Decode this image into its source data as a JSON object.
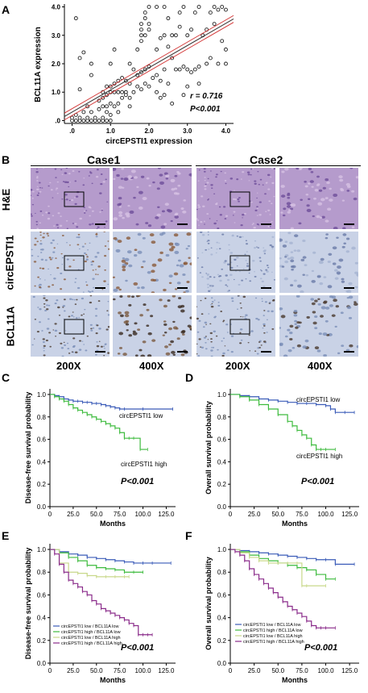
{
  "panel_letters": [
    "A",
    "B",
    "C",
    "D",
    "E",
    "F"
  ],
  "panelA": {
    "xlabel": "circEPSTI1 expression",
    "ylabel": "BCL11A expression",
    "xticks": [
      ".0",
      "1.0",
      "2.0",
      "3.0",
      "4.0"
    ],
    "yticks": [
      ".0",
      "1.0",
      "2.0",
      "3.0",
      "4.0"
    ],
    "stat_r": "r = 0.716",
    "stat_p": "P<0.001"
  },
  "panelB": {
    "cases": [
      "Case1",
      "Case2"
    ],
    "rows": [
      "H&E",
      "circEPSTI1",
      "BCL11A"
    ],
    "mags": [
      "200X",
      "400X",
      "200X",
      "400X"
    ]
  },
  "survival": {
    "xticks": [
      "0",
      "25.0",
      "50.0",
      "75.0",
      "100.0",
      "125.0"
    ],
    "yticks": [
      "0.0",
      "0.2",
      "0.4",
      "0.6",
      "0.8",
      "1.0"
    ],
    "xlabel": "Months",
    "pvalue": "P<0.001",
    "C": {
      "ylabel": "Disease-free survival probability",
      "low": "circEPSTI1 low",
      "high": "circEPSTI1 high"
    },
    "D": {
      "ylabel": "Overall survival probability",
      "low": "circEPSTI1 low",
      "high": "circEPSTI1 high"
    },
    "E": {
      "ylabel": "Disease-free survival probability",
      "legend": [
        "circEPSTI1 low / BCL11A low",
        "circEPSTI1 high / BCL11A low",
        "circEPSTI1 low / BCL11A high",
        "circEPSTI1 high / BCL11A high"
      ]
    },
    "F": {
      "ylabel": "Overall survival probability",
      "legend": [
        "circEPSTI1 low / BCL11A low",
        "circEPSTI1 high / BCL11A low",
        "circEPSTI1 low / BCL11A high",
        "circEPSTI1 high / BCL11A high"
      ]
    }
  },
  "colors": {
    "blue": "#3a5bb8",
    "green": "#3dbb3d",
    "yellowgreen": "#c8d88a",
    "purple": "#8a2b8a",
    "fit": "#d23030",
    "he": "#b59bcc",
    "ihc": "#c9d2e6"
  },
  "chart_data": [
    {
      "type": "scatter",
      "title": "",
      "xlabel": "circEPSTI1 expression",
      "ylabel": "BCL11A expression",
      "xlim": [
        -0.2,
        4.2
      ],
      "ylim": [
        -0.1,
        4.1
      ],
      "annotations": [
        "r = 0.716",
        "P<0.001"
      ],
      "fit_line": {
        "intercept": 0.3,
        "slope": 0.78
      },
      "points": [
        [
          0,
          0
        ],
        [
          0.1,
          0
        ],
        [
          0.2,
          0
        ],
        [
          0.3,
          0
        ],
        [
          0.4,
          0
        ],
        [
          0.5,
          0
        ],
        [
          0.6,
          0
        ],
        [
          0.7,
          0
        ],
        [
          0.8,
          0
        ],
        [
          0.9,
          0
        ],
        [
          1.0,
          0
        ],
        [
          0,
          0.1
        ],
        [
          0.2,
          0.1
        ],
        [
          0.4,
          0.1
        ],
        [
          0.6,
          0.1
        ],
        [
          0.8,
          0.1
        ],
        [
          0.1,
          0.2
        ],
        [
          0.3,
          0.3
        ],
        [
          0.5,
          0.3
        ],
        [
          0.7,
          0.4
        ],
        [
          0.8,
          0.5
        ],
        [
          0.9,
          0.5
        ],
        [
          1.0,
          0.6
        ],
        [
          0.1,
          3.6
        ],
        [
          0.2,
          2.2
        ],
        [
          0.3,
          2.4
        ],
        [
          0.2,
          1.1
        ],
        [
          0.4,
          0.5
        ],
        [
          0.8,
          0.8
        ],
        [
          0.9,
          0.9
        ],
        [
          1.0,
          1.0
        ],
        [
          1.1,
          1.0
        ],
        [
          1.2,
          1.0
        ],
        [
          1.3,
          1.0
        ],
        [
          1.4,
          1.0
        ],
        [
          0.9,
          1.2
        ],
        [
          1.0,
          1.2
        ],
        [
          1.1,
          1.3
        ],
        [
          1.2,
          1.4
        ],
        [
          1.3,
          1.5
        ],
        [
          1.4,
          1.4
        ],
        [
          1.5,
          1.3
        ],
        [
          0.7,
          0.7
        ],
        [
          0.8,
          1.0
        ],
        [
          0.9,
          0.3
        ],
        [
          1.0,
          0.2
        ],
        [
          1.1,
          0.5
        ],
        [
          1.2,
          0.6
        ],
        [
          1.3,
          0.8
        ],
        [
          1.4,
          0.9
        ],
        [
          1.5,
          0.8
        ],
        [
          1.6,
          1.0
        ],
        [
          1.7,
          1.2
        ],
        [
          1.8,
          1.1
        ],
        [
          1.9,
          1.3
        ],
        [
          2.0,
          1.2
        ],
        [
          1.0,
          2.0
        ],
        [
          1.1,
          2.5
        ],
        [
          1.5,
          2.0
        ],
        [
          1.6,
          1.8
        ],
        [
          1.7,
          1.6
        ],
        [
          1.8,
          1.7
        ],
        [
          1.9,
          1.8
        ],
        [
          2.0,
          1.9
        ],
        [
          1.7,
          2.5
        ],
        [
          1.8,
          3.0
        ],
        [
          1.8,
          3.2
        ],
        [
          1.8,
          3.4
        ],
        [
          1.9,
          3.6
        ],
        [
          1.9,
          3.8
        ],
        [
          2.0,
          4.0
        ],
        [
          1.9,
          3.0
        ],
        [
          2.0,
          3.2
        ],
        [
          2.0,
          3.4
        ],
        [
          1.8,
          2.8
        ],
        [
          2.1,
          1.5
        ],
        [
          2.2,
          1.6
        ],
        [
          2.3,
          1.4
        ],
        [
          2.4,
          1.8
        ],
        [
          2.5,
          1.3
        ],
        [
          2.2,
          1.0
        ],
        [
          2.3,
          0.8
        ],
        [
          2.4,
          0.9
        ],
        [
          2.2,
          2.5
        ],
        [
          2.3,
          2.9
        ],
        [
          2.4,
          3.0
        ],
        [
          2.2,
          4.0
        ],
        [
          2.4,
          4.0
        ],
        [
          2.5,
          3.6
        ],
        [
          2.6,
          2.2
        ],
        [
          2.7,
          1.8
        ],
        [
          2.8,
          1.8
        ],
        [
          2.9,
          1.9
        ],
        [
          3.0,
          1.8
        ],
        [
          3.1,
          1.7
        ],
        [
          3.2,
          1.8
        ],
        [
          3.3,
          1.9
        ],
        [
          2.6,
          3.0
        ],
        [
          2.7,
          3.0
        ],
        [
          2.8,
          3.8
        ],
        [
          2.9,
          4.0
        ],
        [
          3.0,
          3.0
        ],
        [
          3.1,
          3.2
        ],
        [
          3.2,
          3.8
        ],
        [
          3.3,
          4.0
        ],
        [
          3.4,
          3.0
        ],
        [
          3.5,
          3.2
        ],
        [
          3.6,
          3.8
        ],
        [
          3.7,
          4.0
        ],
        [
          3.8,
          3.9
        ],
        [
          3.9,
          2.8
        ],
        [
          4.0,
          2.5
        ],
        [
          3.5,
          2.0
        ],
        [
          3.6,
          2.2
        ],
        [
          3.8,
          2.0
        ],
        [
          4.0,
          2.0
        ],
        [
          3.0,
          1.2
        ],
        [
          3.3,
          1.3
        ],
        [
          2.6,
          0.6
        ],
        [
          2.9,
          0.9
        ],
        [
          3.9,
          4.0
        ],
        [
          4.0,
          3.9
        ],
        [
          3.7,
          3.4
        ],
        [
          2.5,
          2.6
        ],
        [
          2.8,
          3.3
        ],
        [
          1.5,
          0.5
        ],
        [
          1.2,
          0.3
        ],
        [
          0.5,
          1.6
        ],
        [
          0.5,
          2.0
        ]
      ]
    },
    {
      "type": "line",
      "title": "",
      "xlabel": "Months",
      "ylabel": "Disease-free survival probability",
      "xlim": [
        0,
        135
      ],
      "ylim": [
        0,
        1.05
      ],
      "series": [
        {
          "name": "circEPSTI1 low",
          "x": [
            0,
            5,
            10,
            15,
            20,
            25,
            30,
            35,
            40,
            45,
            50,
            55,
            60,
            65,
            70,
            75,
            80,
            100,
            132
          ],
          "y": [
            1.0,
            0.99,
            0.98,
            0.96,
            0.95,
            0.94,
            0.94,
            0.93,
            0.93,
            0.92,
            0.92,
            0.91,
            0.9,
            0.89,
            0.88,
            0.87,
            0.87,
            0.87,
            0.87
          ]
        },
        {
          "name": "circEPSTI1 high",
          "x": [
            0,
            5,
            10,
            15,
            20,
            25,
            30,
            35,
            40,
            45,
            50,
            55,
            60,
            65,
            70,
            75,
            80,
            85,
            90,
            97,
            105
          ],
          "y": [
            1.0,
            0.98,
            0.96,
            0.94,
            0.91,
            0.88,
            0.86,
            0.84,
            0.82,
            0.8,
            0.78,
            0.76,
            0.74,
            0.72,
            0.7,
            0.66,
            0.61,
            0.61,
            0.61,
            0.51,
            0.51
          ]
        }
      ]
    },
    {
      "type": "line",
      "title": "",
      "xlabel": "Months",
      "ylabel": "Overall survival probability",
      "xlim": [
        0,
        135
      ],
      "ylim": [
        0,
        1.05
      ],
      "series": [
        {
          "name": "circEPSTI1 low",
          "x": [
            0,
            10,
            20,
            30,
            40,
            50,
            60,
            70,
            80,
            90,
            100,
            105,
            110,
            120,
            130
          ],
          "y": [
            1.0,
            0.99,
            0.98,
            0.96,
            0.95,
            0.94,
            0.93,
            0.92,
            0.92,
            0.91,
            0.9,
            0.87,
            0.84,
            0.84,
            0.84
          ]
        },
        {
          "name": "circEPSTI1 high",
          "x": [
            0,
            10,
            20,
            30,
            40,
            50,
            60,
            65,
            70,
            75,
            80,
            85,
            90,
            95,
            100,
            110
          ],
          "y": [
            1.0,
            0.98,
            0.95,
            0.91,
            0.87,
            0.82,
            0.76,
            0.72,
            0.68,
            0.64,
            0.61,
            0.55,
            0.51,
            0.51,
            0.51,
            0.51
          ]
        }
      ]
    },
    {
      "type": "line",
      "title": "",
      "xlabel": "Months",
      "ylabel": "Disease-free survival probability",
      "xlim": [
        0,
        135
      ],
      "ylim": [
        0,
        1.05
      ],
      "series": [
        {
          "name": "circEPSTI1 low / BCL11A low",
          "x": [
            0,
            10,
            20,
            30,
            40,
            50,
            60,
            70,
            80,
            90,
            100,
            110,
            130
          ],
          "y": [
            1.0,
            0.98,
            0.96,
            0.95,
            0.93,
            0.92,
            0.91,
            0.9,
            0.89,
            0.88,
            0.88,
            0.88,
            0.88
          ]
        },
        {
          "name": "circEPSTI1 high / BCL11A low",
          "x": [
            0,
            10,
            20,
            30,
            40,
            50,
            60,
            70,
            80,
            90,
            100
          ],
          "y": [
            1.0,
            0.97,
            0.93,
            0.9,
            0.86,
            0.84,
            0.83,
            0.82,
            0.8,
            0.8,
            0.8
          ]
        },
        {
          "name": "circEPSTI1 low / BCL11A high",
          "x": [
            0,
            10,
            20,
            30,
            40,
            50,
            60,
            70,
            80,
            85
          ],
          "y": [
            1.0,
            0.88,
            0.8,
            0.79,
            0.77,
            0.76,
            0.76,
            0.76,
            0.76,
            0.76
          ]
        },
        {
          "name": "circEPSTI1 high / BCL11A high",
          "x": [
            0,
            5,
            10,
            15,
            20,
            25,
            30,
            35,
            40,
            45,
            50,
            55,
            60,
            65,
            70,
            75,
            80,
            85,
            90,
            95,
            100,
            105,
            110
          ],
          "y": [
            1.0,
            0.96,
            0.87,
            0.8,
            0.73,
            0.7,
            0.67,
            0.63,
            0.6,
            0.55,
            0.52,
            0.48,
            0.46,
            0.44,
            0.42,
            0.4,
            0.38,
            0.35,
            0.33,
            0.25,
            0.25,
            0.25,
            0.25
          ]
        }
      ]
    },
    {
      "type": "line",
      "title": "",
      "xlabel": "Months",
      "ylabel": "Overall survival probability",
      "xlim": [
        0,
        135
      ],
      "ylim": [
        0,
        1.05
      ],
      "series": [
        {
          "name": "circEPSTI1 low / BCL11A low",
          "x": [
            0,
            10,
            20,
            30,
            40,
            50,
            60,
            70,
            80,
            90,
            100,
            110,
            130
          ],
          "y": [
            1.0,
            0.99,
            0.98,
            0.97,
            0.96,
            0.95,
            0.94,
            0.93,
            0.92,
            0.91,
            0.91,
            0.87,
            0.87
          ]
        },
        {
          "name": "circEPSTI1 high / BCL11A low",
          "x": [
            0,
            10,
            20,
            30,
            40,
            50,
            60,
            70,
            80,
            90,
            100,
            110
          ],
          "y": [
            1.0,
            0.98,
            0.95,
            0.92,
            0.9,
            0.88,
            0.86,
            0.84,
            0.82,
            0.78,
            0.74,
            0.74
          ]
        },
        {
          "name": "circEPSTI1 low / BCL11A high",
          "x": [
            0,
            10,
            20,
            30,
            40,
            50,
            60,
            70,
            75,
            80,
            100
          ],
          "y": [
            1.0,
            0.97,
            0.93,
            0.9,
            0.88,
            0.88,
            0.88,
            0.88,
            0.68,
            0.68,
            0.68
          ]
        },
        {
          "name": "circEPSTI1 high / BCL11A high",
          "x": [
            0,
            5,
            10,
            15,
            20,
            25,
            30,
            35,
            40,
            45,
            50,
            55,
            60,
            65,
            70,
            75,
            80,
            85,
            90,
            95,
            100,
            110
          ],
          "y": [
            1.0,
            0.98,
            0.95,
            0.9,
            0.83,
            0.78,
            0.74,
            0.7,
            0.66,
            0.62,
            0.58,
            0.54,
            0.5,
            0.47,
            0.44,
            0.41,
            0.37,
            0.33,
            0.31,
            0.31,
            0.31,
            0.31
          ]
        }
      ]
    }
  ]
}
